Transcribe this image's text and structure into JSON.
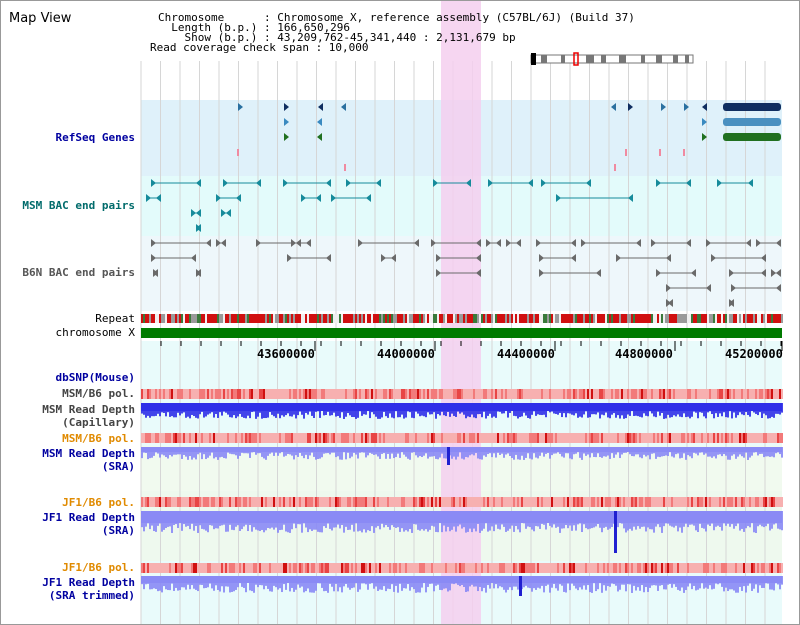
{
  "page": {
    "title": "Map View"
  },
  "info": {
    "lines": [
      "Chromosome      : Chromosome X, reference assembly (C57BL/6J) (Build 37)",
      "  Length (b.p.) : 166,650,296",
      "    Show (b.p.) : 43,209,762-45,341,440 : 2,131,679 bp",
      "Read coverage check span : 10,000"
    ]
  },
  "tracks": {
    "refseq": "RefSeq Genes",
    "msm_bac": "MSM BAC end pairs",
    "b6n_bac": "B6N BAC end pairs",
    "repeat": "Repeat",
    "chromosome": "chromosome X",
    "dbsnp": "dbSNP(Mouse)",
    "msm_b6_pol_1": "MSM/B6 pol.",
    "msm_depth_cap_1": "MSM Read Depth",
    "msm_depth_cap_2": "(Capillary)",
    "msm_b6_pol_2": "MSM/B6 pol.",
    "msm_depth_sra_1": "MSM Read Depth",
    "msm_depth_sra_2": "(SRA)",
    "jf1_b6_pol_1": "JF1/B6 pol.",
    "jf1_depth_sra_1": "JF1 Read Depth",
    "jf1_depth_sra_2": "(SRA)",
    "jf1_b6_pol_2": "JF1/B6 pol.",
    "jf1_depth_trim_1": "JF1 Read Depth",
    "jf1_depth_trim_2": "(SRA trimmed)"
  },
  "ruler": {
    "ticks": [
      "43600000",
      "44000000",
      "44400000",
      "44800000",
      "45200000"
    ]
  },
  "colors": {
    "refseq_bg": "#dff1fa",
    "msm_bac_bg": "#e3fbfb",
    "b6n_bac_bg": "#eef7fb",
    "highlight": "#f5cfef",
    "chromosome_bar": "#007a00",
    "pol_track": "#f7b3b3",
    "depth_blue": "#3030e8",
    "depth_light": "#8a8af5",
    "label_navy": "#0000a0",
    "label_teal": "#006b6b",
    "label_gray": "#444444",
    "label_orange": "#e08a00"
  }
}
